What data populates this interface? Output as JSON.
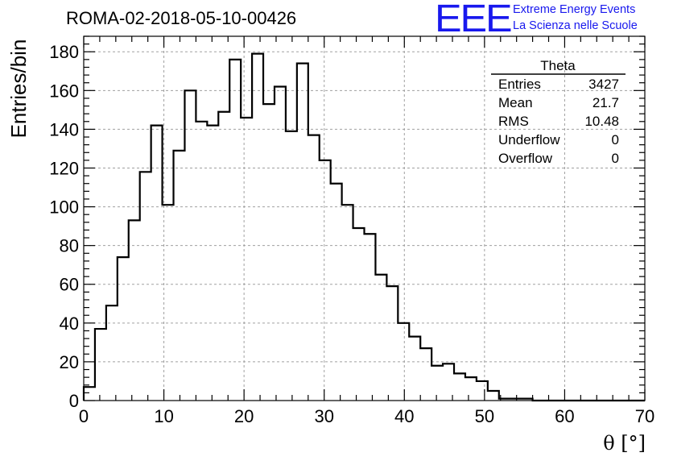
{
  "header": {
    "run_title": "ROMA-02-2018-05-10-00426",
    "logo_text": "EEE",
    "logo_line1": "Extreme Energy Events",
    "logo_line2": "La Scienza nelle Scuole"
  },
  "colors": {
    "logo": "#1818ee",
    "histogram": "#000000",
    "grid": "#a0a0a0"
  },
  "stats": {
    "name": "Theta",
    "rows": [
      {
        "label": "Entries",
        "value": "3427"
      },
      {
        "label": "Mean",
        "value": "21.7"
      },
      {
        "label": "RMS",
        "value": "10.48"
      },
      {
        "label": "Underflow",
        "value": "0"
      },
      {
        "label": "Overflow",
        "value": "0"
      }
    ]
  },
  "chart_data": {
    "type": "bar",
    "title": "ROMA-02-2018-05-10-00426",
    "xlabel": "θ [°]",
    "ylabel": "Entries/bin",
    "xlim": [
      0,
      70
    ],
    "ylim": [
      0,
      188
    ],
    "grid": true,
    "legend": "top-right",
    "bin_width": 1.4,
    "bin_start": 0,
    "xticks": [
      0,
      10,
      20,
      30,
      40,
      50,
      60,
      70
    ],
    "yticks": [
      0,
      20,
      40,
      60,
      80,
      100,
      120,
      140,
      160,
      180
    ],
    "values": [
      7,
      37,
      49,
      74,
      93,
      118,
      142,
      101,
      129,
      160,
      144,
      142,
      149,
      176,
      146,
      179,
      153,
      162,
      139,
      174,
      137,
      124,
      112,
      101,
      89,
      86,
      65,
      59,
      40,
      33,
      27,
      18,
      19,
      14,
      12,
      10,
      5,
      1,
      1,
      1,
      0,
      0,
      0,
      0,
      0,
      0,
      0,
      0,
      0,
      0
    ]
  }
}
